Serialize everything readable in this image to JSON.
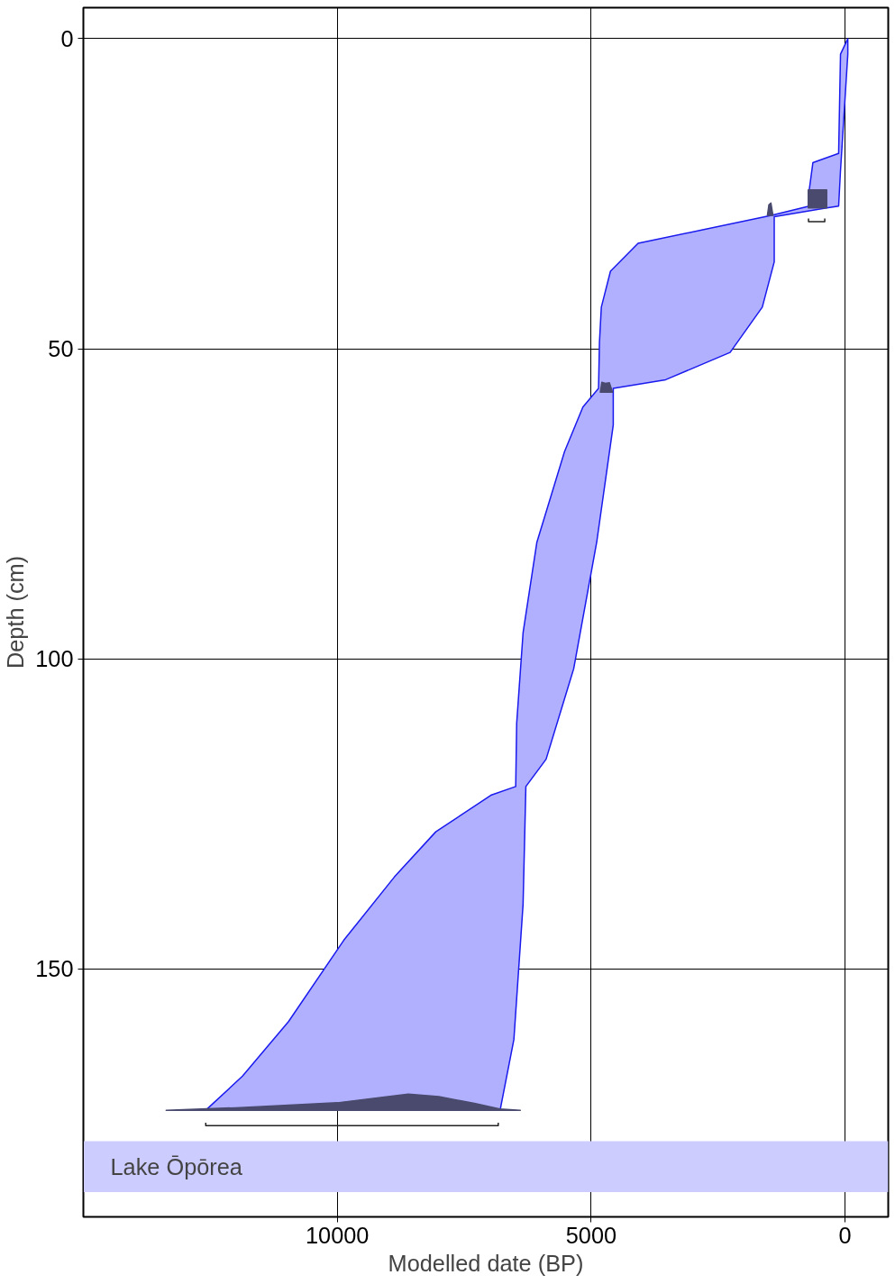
{
  "chart_data": {
    "type": "area",
    "xlabel": "Modelled date (BP)",
    "ylabel": "Depth (cm)",
    "xlim": [
      15000,
      -850
    ],
    "ylim": [
      190,
      -5
    ],
    "xticks": [
      10000,
      5000,
      0
    ],
    "yticks": [
      0,
      50,
      100,
      150
    ],
    "grid": true,
    "bands": [
      {
        "axis": "y",
        "from": 177.8,
        "to": 186,
        "label": "Lake Ōpōrea",
        "color": "#ccccff"
      }
    ],
    "series": [
      {
        "color": "#b0b0ff",
        "x": [
          -54,
          90,
          127,
          634,
          706,
          706,
          1450,
          4076,
          4620,
          4800,
          4837,
          4855,
          5163,
          5525,
          6069,
          6341,
          6467,
          6486,
          6975,
          8060,
          8877,
          9873,
          10960,
          11866,
          12590,
          6793,
          6522,
          6341,
          6286,
          5888,
          5344,
          4891,
          4565,
          4565,
          3533,
          2264,
          1630,
          1395,
          1395,
          362,
          127,
          91,
          -54
        ],
        "values": [
          0,
          2.5,
          18.5,
          20,
          24.4,
          27,
          28.5,
          33,
          37.5,
          43.3,
          49,
          56.4,
          59.4,
          66.6,
          81.2,
          95.8,
          110.4,
          120.6,
          122,
          127.9,
          135.2,
          145.4,
          158.5,
          167.3,
          172.8,
          172.8,
          161.4,
          139.6,
          120.6,
          116.2,
          101.6,
          81.2,
          62.3,
          56.4,
          55,
          50.6,
          43.3,
          36,
          28.7,
          27.3,
          27,
          21.4,
          2.5
        ]
      },
      {
        "type": "area",
        "color": "#4a4a6e",
        "x": [
          13370,
          12000,
          10000,
          9000,
          8600,
          8000,
          7300,
          6800,
          6395
        ],
        "values": [
          172.8,
          172.4,
          171.6,
          170.6,
          170.2,
          170.6,
          171.7,
          172.6,
          172.8
        ]
      },
      {
        "type": "area",
        "color": "#4a4a6e",
        "x": [
          725,
          725,
          362,
          362
        ],
        "values": [
          27.3,
          24.4,
          24.4,
          27.3
        ]
      },
      {
        "type": "area",
        "color": "#4a4a6e",
        "x": [
          1530,
          1500,
          1460,
          1420
        ],
        "values": [
          28.5,
          26.8,
          26.5,
          28.5
        ]
      },
      {
        "type": "area",
        "color": "#4a4a6e",
        "x": [
          4820,
          4790,
          4720,
          4640,
          4580
        ],
        "values": [
          57,
          55.4,
          55.6,
          55.5,
          57
        ]
      },
      {
        "type": "line",
        "color": "#222222",
        "x": [
          12590,
          12590,
          6830,
          6830
        ],
        "values": [
          174.8,
          175.3,
          175.3,
          174.8
        ]
      },
      {
        "type": "line",
        "color": "#222222",
        "x": [
          720,
          720,
          400,
          400
        ],
        "values": [
          29,
          29.5,
          29.5,
          29
        ]
      }
    ]
  }
}
